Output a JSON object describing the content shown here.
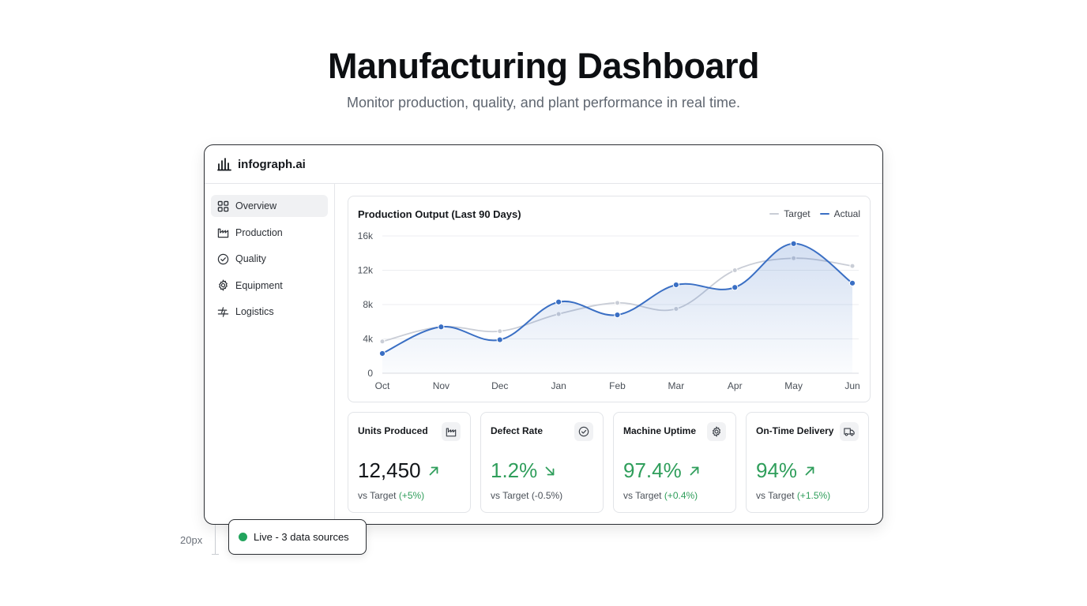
{
  "hero": {
    "title": "Manufacturing Dashboard",
    "subtitle": "Monitor production, quality, and plant performance in real time."
  },
  "app": {
    "brand": "infograph.ai",
    "brand_icon": "bar-chart-icon"
  },
  "sidebar": {
    "items": [
      {
        "label": "Overview",
        "icon": "grid-icon",
        "active": true
      },
      {
        "label": "Production",
        "icon": "factory-icon",
        "active": false
      },
      {
        "label": "Quality",
        "icon": "check-circle-icon",
        "active": false
      },
      {
        "label": "Equipment",
        "icon": "gear-icon",
        "active": false
      },
      {
        "label": "Logistics",
        "icon": "transfer-icon",
        "active": false
      }
    ]
  },
  "chart": {
    "title": "Production Output (Last 90 Days)",
    "legend": {
      "target": "Target",
      "actual": "Actual"
    }
  },
  "chart_data": {
    "type": "line",
    "title": "Production Output (Last 90 Days)",
    "categories": [
      "Oct",
      "Nov",
      "Dec",
      "Jan",
      "Feb",
      "Mar",
      "Apr",
      "May",
      "Jun"
    ],
    "y_ticks": [
      "0",
      "4k",
      "8k",
      "12k",
      "16k"
    ],
    "ylim": [
      0,
      16000
    ],
    "grid": true,
    "legend_position": "top-right",
    "series": [
      {
        "name": "Target",
        "color": "#c9cdd6",
        "values": [
          3700,
          5400,
          4900,
          6900,
          8200,
          7500,
          12000,
          13400,
          12500
        ]
      },
      {
        "name": "Actual",
        "color": "#3a6fc4",
        "area": true,
        "values": [
          2300,
          5400,
          3900,
          8300,
          6800,
          10300,
          10000,
          15100,
          10500
        ]
      }
    ]
  },
  "kpis": [
    {
      "title": "Units Produced",
      "icon": "factory-icon",
      "value": "12,450",
      "value_color": "#111418",
      "trend": "up",
      "trend_color": "#2f9e5b",
      "sub_prefix": "vs Target",
      "delta": "(+5%)",
      "delta_color": "green"
    },
    {
      "title": "Defect Rate",
      "icon": "check-circle-icon",
      "value": "1.2%",
      "value_color": "#2f9e5b",
      "trend": "down",
      "trend_color": "#2f9e5b",
      "sub_prefix": "vs Target",
      "delta": "(-0.5%)",
      "delta_color": "gray"
    },
    {
      "title": "Machine Uptime",
      "icon": "gear-icon",
      "value": "97.4%",
      "value_color": "#2f9e5b",
      "trend": "up",
      "trend_color": "#2f9e5b",
      "sub_prefix": "vs Target",
      "delta": "(+0.4%)",
      "delta_color": "green"
    },
    {
      "title": "On-Time Delivery",
      "icon": "truck-icon",
      "value": "94%",
      "value_color": "#2f9e5b",
      "trend": "up",
      "trend_color": "#2f9e5b",
      "sub_prefix": "vs Target",
      "delta": "(+1.5%)",
      "delta_color": "green"
    }
  ],
  "live": {
    "label": "Live - 3 data sources",
    "dot_color": "#22a45d"
  },
  "annotation": {
    "spacing": "20px"
  }
}
